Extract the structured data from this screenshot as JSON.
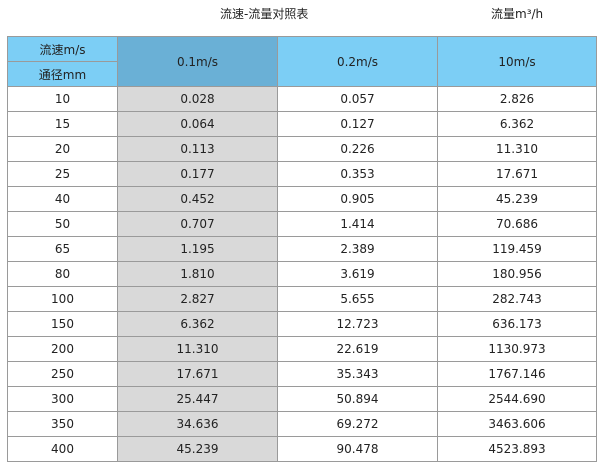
{
  "title": "流速-流量对照表",
  "unit_label": "流量m³/h",
  "header": {
    "velocity_label": "流速m/s",
    "diameter_label": "通径mm",
    "columns": [
      "0.1m/s",
      "0.2m/s",
      "10m/s"
    ]
  },
  "rows": [
    [
      "10",
      "0.028",
      "0.057",
      "2.826"
    ],
    [
      "15",
      "0.064",
      "0.127",
      "6.362"
    ],
    [
      "20",
      "0.113",
      "0.226",
      "11.310"
    ],
    [
      "25",
      "0.177",
      "0.353",
      "17.671"
    ],
    [
      "40",
      "0.452",
      "0.905",
      "45.239"
    ],
    [
      "50",
      "0.707",
      "1.414",
      "70.686"
    ],
    [
      "65",
      "1.195",
      "2.389",
      "119.459"
    ],
    [
      "80",
      "1.810",
      "3.619",
      "180.956"
    ],
    [
      "100",
      "2.827",
      "5.655",
      "282.743"
    ],
    [
      "150",
      "6.362",
      "12.723",
      "636.173"
    ],
    [
      "200",
      "11.310",
      "22.619",
      "1130.973"
    ],
    [
      "250",
      "17.671",
      "35.343",
      "1767.146"
    ],
    [
      "300",
      "25.447",
      "50.894",
      "2544.690"
    ],
    [
      "350",
      "34.636",
      "69.272",
      "3463.606"
    ],
    [
      "400",
      "45.239",
      "90.478",
      "4523.893"
    ]
  ],
  "colors": {
    "header": "#7ccef5",
    "header_highlight": "#6ab0d6",
    "column_shade": "#d9d9d9"
  }
}
